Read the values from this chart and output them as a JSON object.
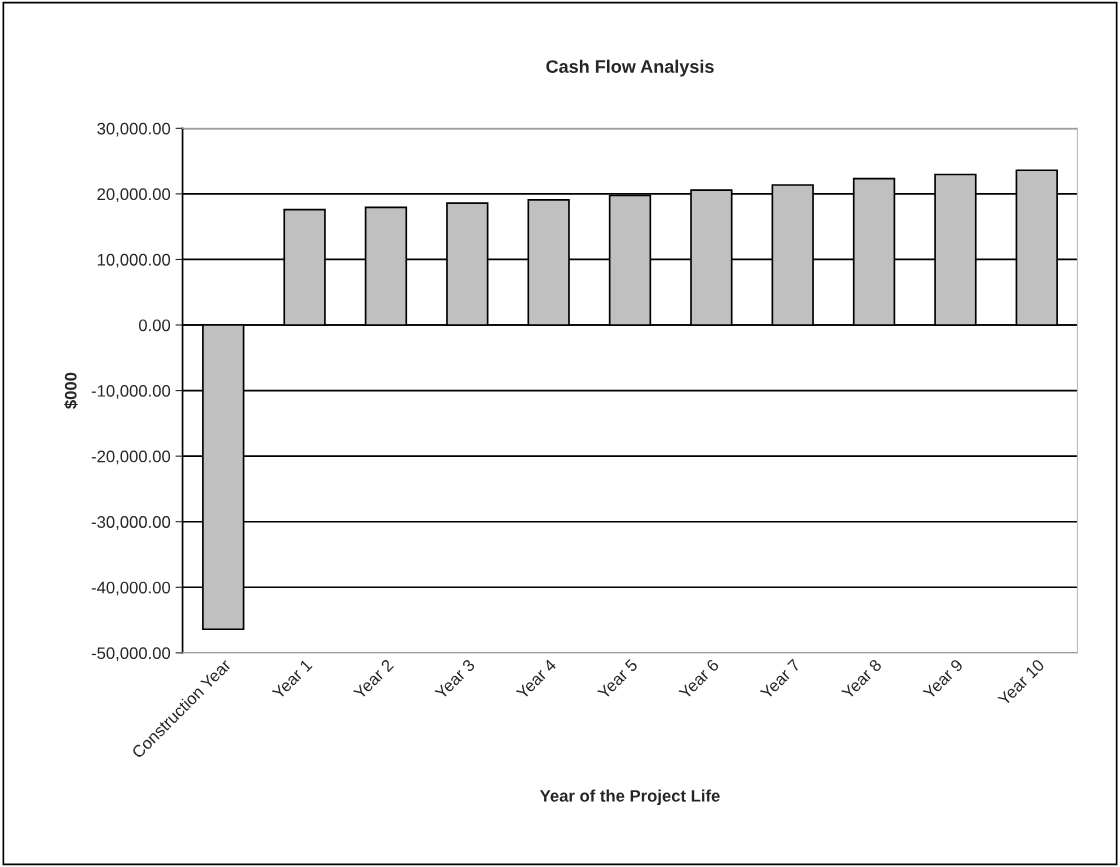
{
  "chart_data": {
    "type": "bar",
    "title": "Cash Flow Analysis",
    "xlabel": "Year of the Project Life",
    "ylabel": "$000",
    "categories": [
      "Construction Year",
      "Year 1",
      "Year 2",
      "Year 3",
      "Year 4",
      "Year 5",
      "Year 6",
      "Year 7",
      "Year 8",
      "Year 9",
      "Year 10"
    ],
    "values": [
      -46400,
      17600,
      17950,
      18580,
      19090,
      19750,
      20580,
      21360,
      22330,
      22950,
      23600
    ],
    "color": "#c0c0c0",
    "ylim": [
      -50000,
      30000
    ],
    "yticks": [
      {
        "value": -50000,
        "label": "-50,000.00"
      },
      {
        "value": -40000,
        "label": "-40,000.00"
      },
      {
        "value": -30000,
        "label": "-30,000.00"
      },
      {
        "value": -20000,
        "label": "-20,000.00"
      },
      {
        "value": -10000,
        "label": "-10,000.00"
      },
      {
        "value": 0,
        "label": "0.00"
      },
      {
        "value": 10000,
        "label": "10,000.00"
      },
      {
        "value": 20000,
        "label": "20,000.00"
      },
      {
        "value": 30000,
        "label": "30,000.00"
      }
    ],
    "grid": "y",
    "legend": false
  }
}
